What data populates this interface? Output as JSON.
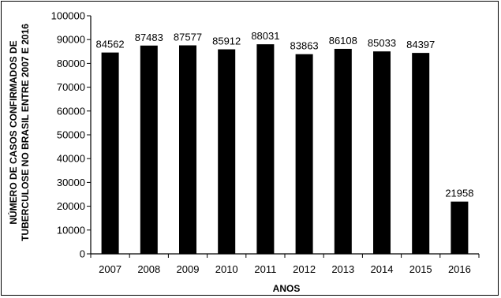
{
  "chart_data": {
    "type": "bar",
    "categories": [
      "2007",
      "2008",
      "2009",
      "2010",
      "2011",
      "2012",
      "2013",
      "2014",
      "2015",
      "2016"
    ],
    "values": [
      84562,
      87483,
      87577,
      85912,
      88031,
      83863,
      86108,
      85033,
      84397,
      21958
    ],
    "data_labels": [
      "84562",
      "87483",
      "87577",
      "85912",
      "88031",
      "83863",
      "86108",
      "85033",
      "84397",
      "21958"
    ],
    "title": "",
    "xlabel": "ANOS",
    "ylabel_lines": [
      "NÚMERO DE CASOS CONFIRMADOS DE",
      "TUBERCULOSE NO BRASIL ENTRE 2007 E 2016"
    ],
    "ylim": [
      0,
      100000
    ],
    "yticks": [
      "0",
      "10000",
      "20000",
      "30000",
      "40000",
      "50000",
      "60000",
      "70000",
      "80000",
      "90000",
      "100000"
    ],
    "bar_color": "#000000",
    "grid": false,
    "legend": "none"
  }
}
